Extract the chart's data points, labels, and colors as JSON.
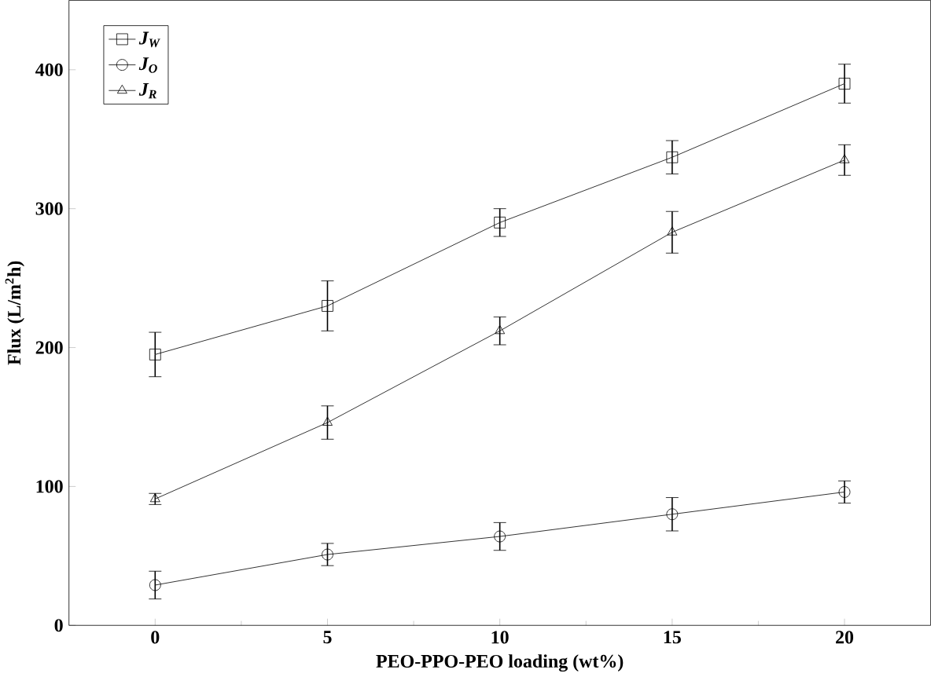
{
  "chart_data": {
    "type": "line",
    "xlabel": "PEO-PPO-PEO loading (wt%)",
    "ylabel": "Flux (L/m$^{2}$h)",
    "x": [
      0,
      5,
      10,
      15,
      20
    ],
    "xlim": [
      -2.5,
      22.5
    ],
    "xticks": [
      0,
      5,
      10,
      15,
      20
    ],
    "ylim": [
      0,
      450
    ],
    "yticks": [
      0,
      100,
      200,
      300,
      400
    ],
    "legend": "top left",
    "grid": false,
    "line_style": "solid",
    "series": [
      {
        "name": "J$_{W}$",
        "color": "#000000",
        "marker": "square",
        "values": [
          195,
          230,
          290,
          337,
          390
        ],
        "errors": [
          16,
          18,
          10,
          12,
          14
        ]
      },
      {
        "name": "J$_{O}$",
        "color": "#000000",
        "marker": "circle",
        "values": [
          29,
          51,
          64,
          80,
          96
        ],
        "errors": [
          10,
          8,
          10,
          12,
          8
        ]
      },
      {
        "name": "J$_{R}$",
        "color": "#000000",
        "marker": "triangle",
        "values": [
          91,
          146,
          212,
          283,
          335
        ],
        "errors": [
          4,
          12,
          10,
          15,
          11
        ]
      }
    ]
  }
}
